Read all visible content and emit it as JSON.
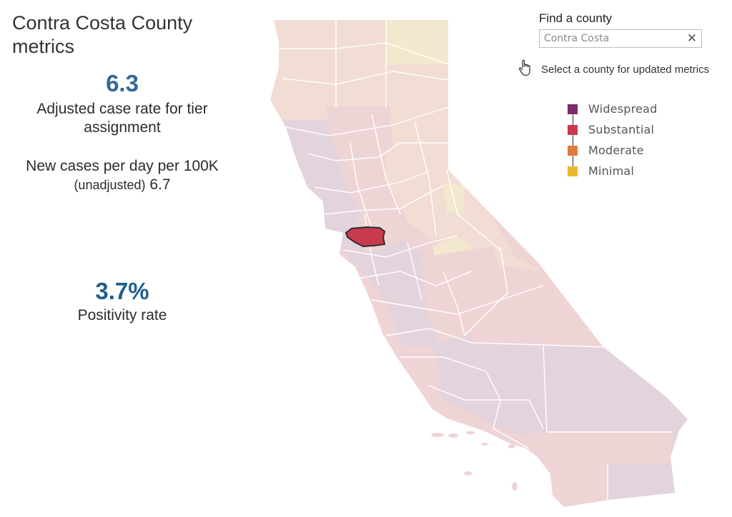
{
  "header": {
    "title": "Contra Costa County metrics"
  },
  "metrics": {
    "adjusted_case_rate": {
      "value": "6.3",
      "label": "Adjusted case rate for tier assignment"
    },
    "new_cases": {
      "label": "New cases per day per 100K",
      "paren": "(unadjusted)",
      "value": "6.7"
    },
    "positivity": {
      "value": "3.7%",
      "label": "Positivity rate"
    }
  },
  "search": {
    "label": "Find a county",
    "value": "Contra Costa",
    "placeholder": "Contra Costa",
    "clear_icon": "close-icon",
    "hint": "Select a county for updated metrics",
    "hint_icon": "hand-pointer-icon"
  },
  "legend": {
    "items": [
      {
        "label": "Widespread",
        "color": "#7b2a6e"
      },
      {
        "label": "Substantial",
        "color": "#c93a4f"
      },
      {
        "label": "Moderate",
        "color": "#e07b3f"
      },
      {
        "label": "Minimal",
        "color": "#e9b92f"
      }
    ]
  },
  "map": {
    "selected_county": "Contra Costa",
    "selected_tier": "Substantial",
    "faded_colors": {
      "widespread": "#e3d3dc",
      "substantial": "#efd4d6",
      "moderate": "#f1ddd3",
      "minimal": "#f3e8cd"
    }
  }
}
